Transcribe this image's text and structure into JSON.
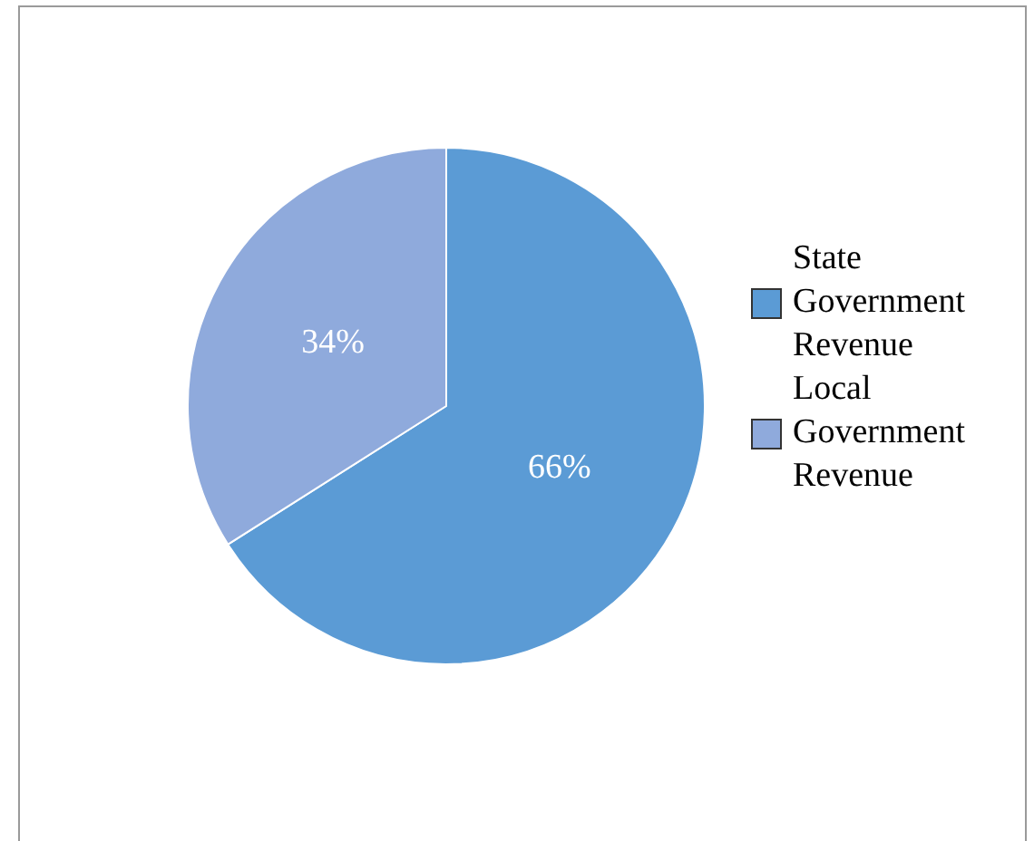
{
  "chart_data": {
    "type": "pie",
    "categories": [
      "State Government Revenue",
      "Local Government Revenue"
    ],
    "values": [
      66,
      34
    ],
    "colors": [
      "#5b9bd5",
      "#8faadc"
    ],
    "value_labels": [
      "66%",
      "34%"
    ],
    "legend": "right"
  }
}
